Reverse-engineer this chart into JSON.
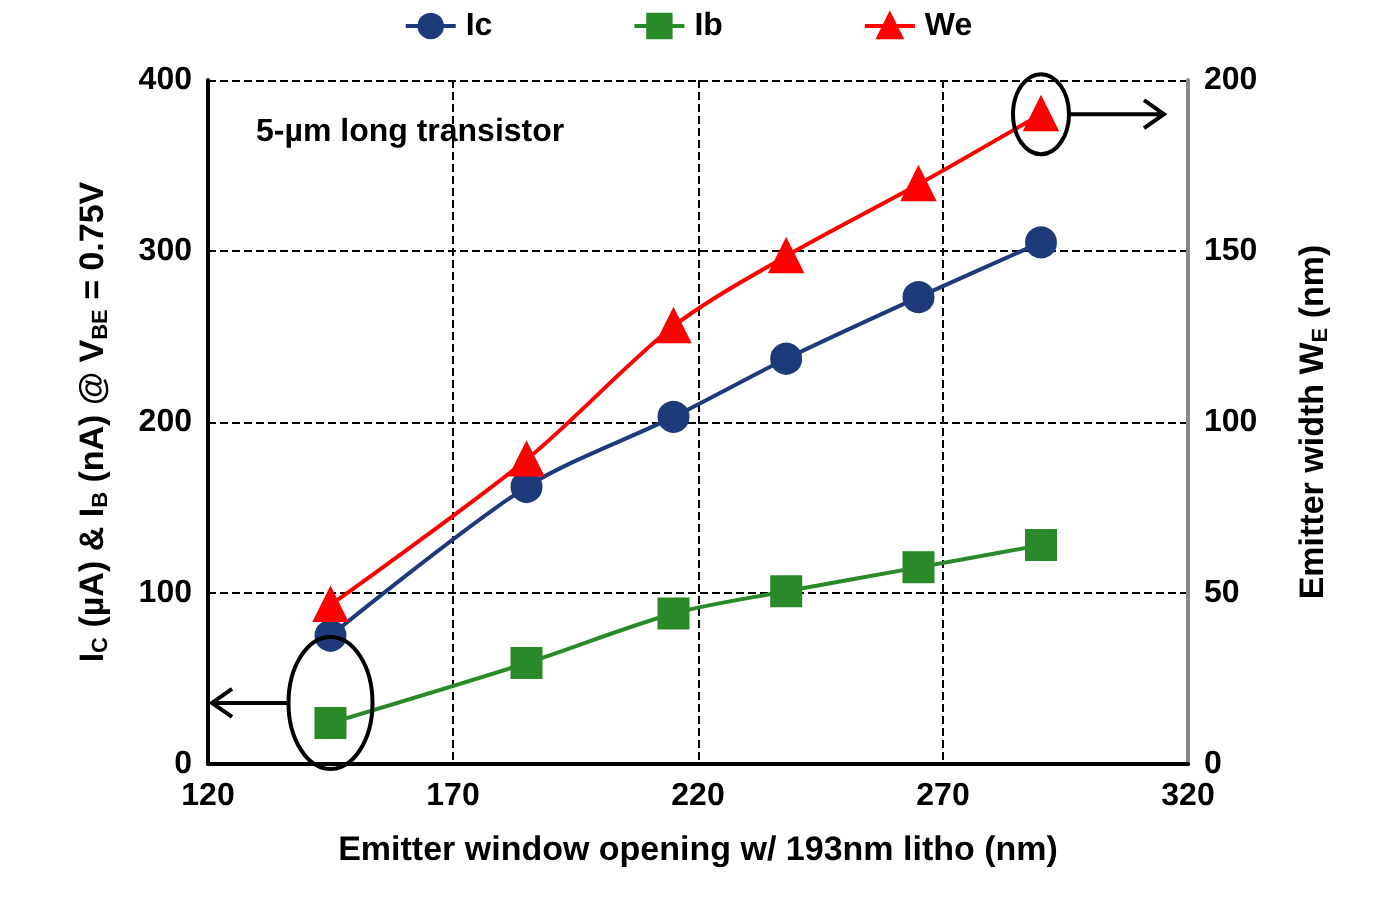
{
  "chart_data": {
    "type": "line",
    "xlabel": "Emitter window opening w/ 193nm litho (nm)",
    "ylabel": "I$_{C}$ (µA) & I$_{B}$ (nA) @ V$_{BE}$ = 0.75V",
    "y2label": "Emitter width W$_{E}$ (nm)",
    "annotations": [
      "5-µm long transistor"
    ],
    "x": [
      145,
      185,
      215,
      238,
      265,
      290
    ],
    "series": [
      {
        "name": "Ic",
        "color": "#1f3a7a",
        "marker": "circle",
        "values": [
          75,
          162,
          203,
          237,
          273,
          305
        ]
      },
      {
        "name": "Ib",
        "color": "#2a8a2a",
        "marker": "square",
        "values": [
          24,
          59,
          88,
          101,
          115,
          128
        ]
      },
      {
        "name": "We",
        "color": "#ff0000",
        "marker": "triangle",
        "axis": "y2",
        "values": [
          46.5,
          89,
          128,
          148.5,
          169.5,
          190
        ]
      }
    ],
    "xlim": [
      120,
      320
    ],
    "xticks": [
      120,
      170,
      220,
      270,
      320
    ],
    "ylim": [
      0,
      400
    ],
    "yticks": [
      0,
      100,
      200,
      300,
      400
    ],
    "y2lim": [
      0,
      200
    ],
    "y2ticks": [
      0,
      50,
      100,
      150,
      200
    ],
    "grid": true,
    "line_style": "solid",
    "legend": "top"
  }
}
